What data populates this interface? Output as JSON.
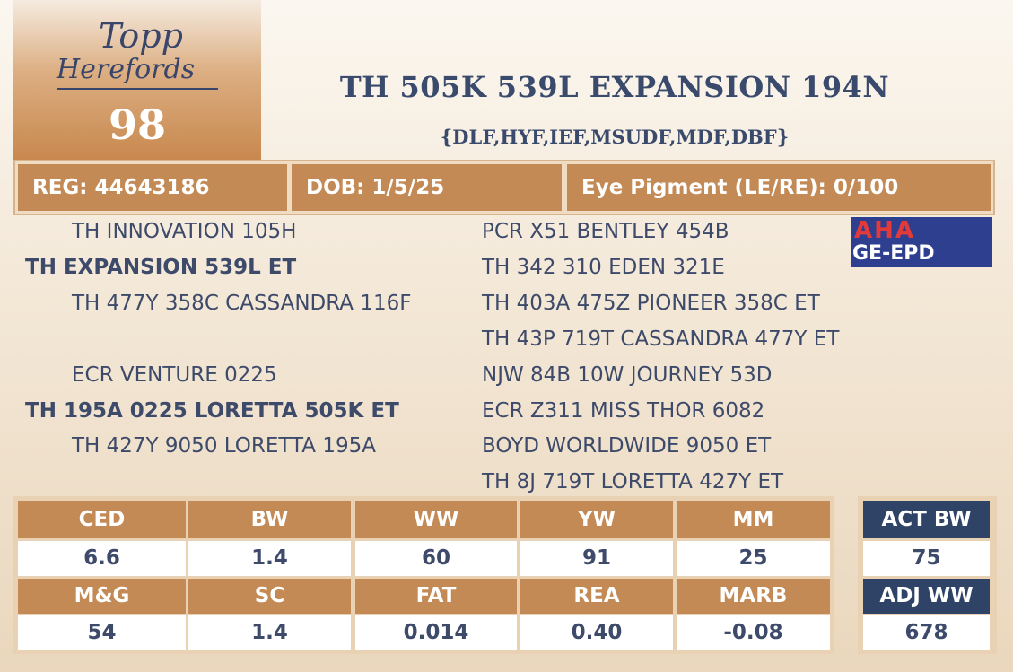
{
  "logo": {
    "line1": "Topp",
    "line2": "Herefords"
  },
  "lot": "98",
  "title": "TH 505K 539L EXPANSION 194N",
  "subtitle": "{DLF,HYF,IEF,MSUDF,MDF,DBF}",
  "info": [
    "REG: 44643186",
    "DOB: 1/5/25",
    "Eye Pigment (LE/RE): 0/100"
  ],
  "badge": {
    "top": "AHA",
    "bottom": "GE-EPD"
  },
  "pedigree": {
    "left": [
      "TH INNOVATION 105H",
      "TH EXPANSION 539L ET",
      "TH 477Y 358C CASSANDRA 116F",
      "ECR VENTURE 0225",
      "TH 195A 0225 LORETTA 505K ET",
      "TH 427Y 9050 LORETTA 195A"
    ],
    "right": [
      "PCR X51 BENTLEY 454B",
      "TH 342 310 EDEN 321E",
      "TH 403A 475Z PIONEER 358C ET",
      "TH 43P 719T CASSANDRA 477Y ET",
      "NJW 84B 10W JOURNEY 53D",
      "ECR Z311 MISS THOR 6082",
      "BOYD WORLDWIDE 9050 ET",
      "TH 8J 719T LORETTA 427Y ET"
    ]
  },
  "epd": {
    "headers": [
      [
        "CED",
        "BW",
        "WW",
        "YW",
        "MM"
      ],
      [
        "M&G",
        "SC",
        "FAT",
        "REA",
        "MARB"
      ]
    ],
    "values": [
      [
        "6.6",
        "1.4",
        "60",
        "91",
        "25"
      ],
      [
        "54",
        "1.4",
        "0.014",
        "0.40",
        "-0.08"
      ]
    ]
  },
  "actual": {
    "headers": [
      "ACT BW",
      "ADJ WW"
    ],
    "values": [
      "75",
      "678"
    ]
  }
}
